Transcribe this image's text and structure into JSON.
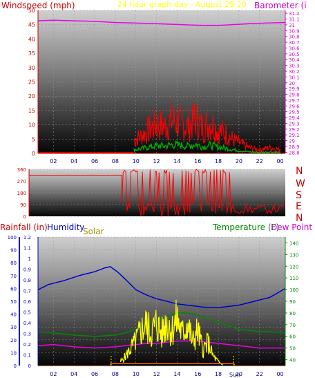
{
  "header": {
    "windspeed_label": "Windspeed (mph)",
    "title": "24 hour graph day - August 29 20",
    "barometer_label": "Barometer (i"
  },
  "direction_letters": [
    "N",
    "W",
    "S",
    "E",
    "N"
  ],
  "bottom_labels": {
    "rainfall": "Rainfall (in)",
    "humidity": "Humidity",
    "solar": "Solar",
    "temperature": "Temperature (F)",
    "dew_point": "Dew Point (",
    "sunrise_sunset_marker": "Sun"
  },
  "colors": {
    "wind_gust": "#ff0000",
    "wind_avg": "#0000ff",
    "wind_low": "#00aa00",
    "barometer": "#ee00ee",
    "direction": "#ff0000",
    "humidity": "#0000cc",
    "temperature": "#008800",
    "dew_point": "#ee00ee",
    "solar": "#ffff00",
    "rain": "#ff6600",
    "axis_left": "#cc0000",
    "axis_bottom_left": "#0000cc",
    "axis_right_bottom": "#008800",
    "solar_text": "#999900"
  },
  "chart_data": [
    {
      "type": "line",
      "name": "windspeed-barometer",
      "x_ticks": [
        "02",
        "04",
        "06",
        "08",
        "10",
        "12",
        "14",
        "16",
        "18",
        "20",
        "22",
        "00"
      ],
      "y_left_ticks": [
        "0",
        "5",
        "10",
        "15",
        "20",
        "25",
        "30",
        "35",
        "40",
        "45",
        "50"
      ],
      "y_left_range": [
        0,
        50
      ],
      "y_right_ticks": [
        "28.8",
        "28.9",
        "29",
        "29.1",
        "29.2",
        "29.3",
        "29.4",
        "29.5",
        "29.6",
        "29.7",
        "29.8",
        "29.9",
        "30",
        "30.1",
        "30.2",
        "30.3",
        "30.4",
        "30.5",
        "30.6",
        "30.7",
        "30.8",
        "30.9",
        "31",
        "31.1",
        "31.2"
      ],
      "y_right_range": [
        28.78,
        31.25
      ],
      "x_range": [
        0.5,
        24.5
      ],
      "series": [
        {
          "x": [
            0.5,
            2,
            4,
            6,
            8,
            10,
            12,
            13.5,
            15,
            16.5,
            18,
            19,
            21,
            22.5,
            24.5
          ],
          "y": [
            31.07,
            31.08,
            31.07,
            31.06,
            31.04,
            31.03,
            31.02,
            31.01,
            31.0,
            30.99,
            30.99,
            31.0,
            31.02,
            31.03,
            31.04
          ]
        },
        {
          "x": [
            9.8,
            10.5,
            11.2,
            12,
            12.8,
            13.5,
            14.2,
            15,
            15.8,
            16.5,
            17.2,
            18,
            18.8,
            19.5,
            20.2,
            21,
            22,
            23,
            24
          ],
          "y": [
            7,
            9,
            12,
            15,
            14,
            17,
            16,
            14,
            18,
            13,
            16,
            12,
            10,
            7,
            5,
            3,
            2,
            3,
            2
          ]
        },
        {
          "x": [
            9.8,
            10.5,
            11.2,
            12,
            12.8,
            13.5,
            14.2,
            15,
            15.8,
            16.5,
            17.2,
            18,
            18.8,
            19.5,
            20.2,
            21,
            22,
            23,
            24
          ],
          "y": [
            1,
            2,
            3,
            4,
            3,
            4,
            3,
            3,
            4,
            3,
            3,
            3,
            2,
            2,
            1,
            1,
            1,
            1,
            1
          ]
        }
      ]
    },
    {
      "type": "scatter",
      "name": "wind-direction",
      "x_ticks": [
        "02",
        "04",
        "06",
        "08",
        "10",
        "12",
        "14",
        "16",
        "18",
        "20",
        "22",
        "00"
      ],
      "y_ticks": [
        "0",
        "45",
        "90",
        "135",
        "180",
        "225",
        "270",
        "315",
        "360"
      ],
      "y_range": [
        0,
        360
      ],
      "x_range": [
        0.5,
        24.5
      ],
      "x": [
        0.5,
        9.2,
        9.5,
        9.8,
        10.4,
        11,
        11.6,
        12.2,
        12.8,
        13.4,
        14,
        14.6,
        15.2,
        15.8,
        16.4,
        17,
        17.6,
        18.2,
        18.8,
        19.4,
        20,
        20.6,
        21.2,
        22,
        23,
        23.8,
        24.5
      ],
      "y": [
        315,
        315,
        20,
        300,
        350,
        100,
        340,
        20,
        350,
        60,
        330,
        10,
        340,
        80,
        350,
        30,
        320,
        120,
        340,
        30,
        50,
        40,
        40,
        80,
        60,
        90,
        30
      ]
    },
    {
      "type": "line",
      "name": "rain-humidity-solar-temperature-dewpoint",
      "x_ticks": [
        "02",
        "04",
        "06",
        "08",
        "10",
        "12",
        "14",
        "16",
        "18",
        "20",
        "22",
        "00"
      ],
      "y_rain_ticks": [
        "0",
        "0.1",
        "0.2",
        "0.3",
        "0.4",
        "0.5",
        "0.6",
        "0.7",
        "0.8",
        "0.9",
        "1",
        "1.1",
        "1.2"
      ],
      "y_rain_range": [
        0,
        1.2
      ],
      "y_humidity_ticks": [
        "0",
        "10",
        "20",
        "30",
        "40",
        "50",
        "60",
        "70",
        "80",
        "90",
        "100"
      ],
      "y_humidity_range": [
        0,
        100
      ],
      "y_temperature_ticks": [
        "40",
        "50",
        "60",
        "70",
        "80",
        "90",
        "100",
        "110",
        "120",
        "130",
        "140"
      ],
      "y_temperature_range": [
        35,
        145
      ],
      "x_range": [
        0.5,
        24.5
      ],
      "series": [
        {
          "x": [
            0.5,
            1.5,
            3,
            4.5,
            6,
            7,
            7.5,
            8.2,
            9,
            10,
            11,
            12,
            13,
            14,
            15,
            16,
            17,
            18,
            19,
            20,
            21,
            22,
            23,
            24.5
          ],
          "y": [
            59,
            63,
            66,
            70,
            73,
            76,
            77,
            73,
            67,
            59,
            55,
            52,
            50,
            48,
            47,
            46,
            45,
            45,
            46,
            47,
            49,
            51,
            53,
            60
          ]
        },
        {
          "x": [
            0.5,
            2,
            4,
            6,
            8,
            9,
            10,
            11,
            12,
            13,
            14,
            15,
            16,
            17,
            18,
            19,
            20,
            21,
            22,
            23,
            24.5
          ],
          "y": [
            64,
            63,
            61,
            60,
            61,
            63,
            66,
            70,
            74,
            77,
            80,
            80,
            78,
            75,
            72,
            69,
            66,
            65,
            64,
            64,
            63
          ]
        },
        {
          "x": [
            0.5,
            2,
            4,
            6,
            8,
            9,
            10,
            11,
            12,
            13,
            14,
            15,
            16,
            17,
            18,
            19,
            20,
            21,
            22,
            23,
            24.5
          ],
          "y": [
            52,
            53,
            51,
            50,
            51,
            52,
            53,
            54,
            54,
            55,
            56,
            56,
            56,
            55,
            54,
            53,
            52,
            51,
            50,
            50,
            50
          ]
        },
        {
          "x": [
            8.5,
            9,
            9.5,
            10,
            10.5,
            11,
            11.5,
            12,
            12.5,
            13,
            13.5,
            14,
            14.5,
            15,
            15.5,
            16,
            16.5,
            17,
            17.5,
            18,
            18.5
          ],
          "y": [
            0.05,
            0.12,
            0.22,
            0.32,
            0.45,
            0.52,
            0.42,
            0.55,
            0.4,
            0.58,
            0.45,
            0.6,
            0.4,
            0.55,
            0.3,
            0.45,
            0.2,
            0.3,
            0.12,
            0.05,
            0.0
          ]
        },
        {
          "x": [
            0.5,
            7.5,
            7.6,
            19.5,
            19.6,
            24.5
          ],
          "y": [
            0,
            0,
            0.02,
            0.02,
            0,
            0
          ]
        }
      ]
    }
  ]
}
